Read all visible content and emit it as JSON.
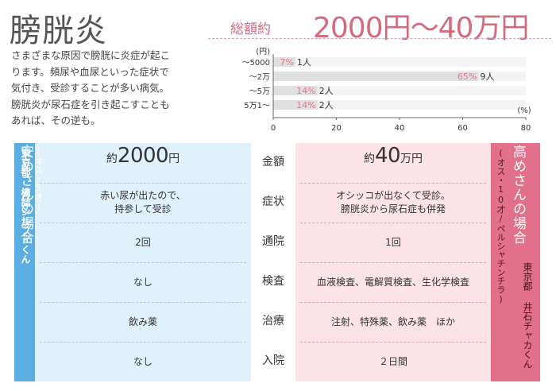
{
  "title": "膀胱炎",
  "intro": {
    "lines": [
      "さまざまな原因で膀胱に炎症が起こ",
      "ります。頻尿や血尿といった症状で",
      "気付き、受診することが多い病気。",
      "膀胱炎が尿石症を引き起こすことも",
      "あれば、その逆も。"
    ]
  },
  "total": {
    "label": "総額約",
    "range": "2000円〜40万円"
  },
  "chart_data": {
    "type": "bar",
    "orientation": "horizontal",
    "y_unit": "(円)",
    "x_unit": "(%)",
    "categories": [
      "〜5000",
      "〜2万",
      "〜5万",
      "5万1〜"
    ],
    "values": [
      7,
      65,
      14,
      14
    ],
    "value_labels": [
      "7%",
      "65%",
      "14%",
      "14%"
    ],
    "counts": [
      "1人",
      "9人",
      "2人",
      "2人"
    ],
    "xlim": [
      0,
      80
    ],
    "xticks": [
      "0",
      "20",
      "40",
      "60",
      "80"
    ],
    "colors": {
      "bar": "#e0e0e0",
      "pct": "#e2788b",
      "track": "#f4f4f4"
    }
  },
  "left": {
    "name": "安めさんの場合",
    "owner_lines": [
      "東京都 橋詰シルフィくん",
      "(オス・5才)"
    ],
    "color": "#5aaee2"
  },
  "right": {
    "name": "高めさんの場合",
    "owner_lines": [
      "(オス・10才/ペルシャチンチラ)"
    ],
    "location": "東京都 井石チャカくん",
    "color": "#e2708a"
  },
  "rows": [
    {
      "label": "金額",
      "left_prefix": "約",
      "left_num": "2000",
      "left_unit": "円",
      "right_prefix": "約",
      "right_num": "40",
      "right_unit": "万円"
    },
    {
      "label": "症状",
      "left": [
        "赤い尿が出たので、",
        "持参して受診"
      ],
      "right": [
        "オシッコが出なくて受診。",
        "膀胱炎から尿石症も併発"
      ]
    },
    {
      "label": "通院",
      "left": [
        "2回"
      ],
      "right": [
        "1回"
      ]
    },
    {
      "label": "検査",
      "left": [
        "なし"
      ],
      "right": [
        "血液検査、電解質検査、生化学検査"
      ]
    },
    {
      "label": "治療",
      "left": [
        "飲み薬"
      ],
      "right": [
        "注射、特殊薬、飲み薬　ほか"
      ]
    },
    {
      "label": "入院",
      "left": [
        "なし"
      ],
      "right": [
        "２日間"
      ]
    }
  ]
}
